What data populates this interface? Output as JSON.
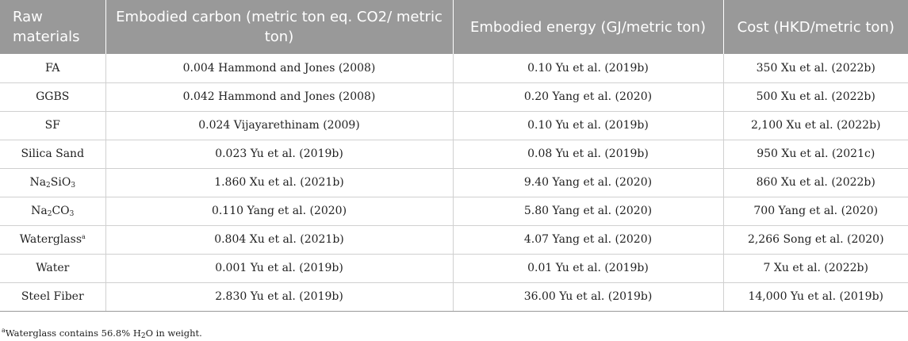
{
  "table": {
    "headers": [
      "Raw materials",
      "Embodied carbon (metric ton eq. CO2/ metric ton)",
      "Embodied energy (GJ/metric ton)",
      "Cost (HKD/metric ton)"
    ],
    "rows": [
      {
        "material": "FA",
        "carbon": "0.004 Hammond and Jones (2008)",
        "energy": "0.10 Yu et al. (2019b)",
        "cost": "350 Xu et al. (2022b)"
      },
      {
        "material": "GGBS",
        "carbon": "0.042 Hammond and Jones (2008)",
        "energy": "0.20 Yang et al. (2020)",
        "cost": "500 Xu et al. (2022b)"
      },
      {
        "material": "SF",
        "carbon": "0.024 Vijayarethinam (2009)",
        "energy": "0.10 Yu et al. (2019b)",
        "cost": "2,100 Xu et al. (2022b)"
      },
      {
        "material": "Silica Sand",
        "carbon": "0.023 Yu et al. (2019b)",
        "energy": "0.08 Yu et al. (2019b)",
        "cost": "950 Xu et al. (2021c)"
      },
      {
        "material_parts": [
          "Na",
          "2",
          "SiO",
          "3"
        ],
        "carbon": "1.860 Xu et al. (2021b)",
        "energy": "9.40 Yang et al. (2020)",
        "cost": "860 Xu et al. (2022b)"
      },
      {
        "material_parts": [
          "Na",
          "2",
          "CO",
          "3"
        ],
        "carbon": "0.110 Yang et al. (2020)",
        "energy": "5.80 Yang et al. (2020)",
        "cost": "700 Yang et al. (2020)"
      },
      {
        "material": "Waterglass",
        "material_sup": "a",
        "carbon": "0.804 Xu et al. (2021b)",
        "energy": "4.07 Yang et al. (2020)",
        "cost": "2,266 Song et al. (2020)"
      },
      {
        "material": "Water",
        "carbon": "0.001 Yu et al. (2019b)",
        "energy": "0.01 Yu et al. (2019b)",
        "cost": "7 Xu et al. (2022b)"
      },
      {
        "material": "Steel Fiber",
        "carbon": "2.830 Yu et al. (2019b)",
        "energy": "36.00 Yu et al. (2019b)",
        "cost": "14,000 Yu et al. (2019b)"
      }
    ]
  },
  "footnote": {
    "marker": "a",
    "text_before": "Waterglass contains 56.8% H",
    "sub": "2",
    "text_after": "O in weight."
  }
}
